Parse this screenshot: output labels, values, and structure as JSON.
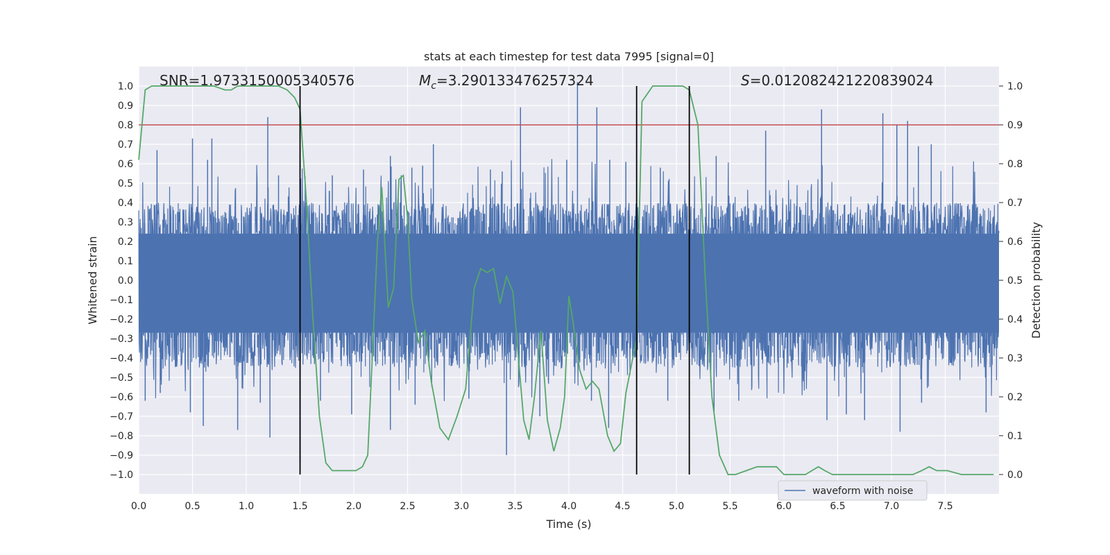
{
  "chart_data": {
    "type": "line",
    "title": "stats at each timestep for test data 7995 [signal=0]",
    "xlabel": "Time (s)",
    "ylabel": "Whitened strain",
    "ylabel_right": "Detection probability",
    "xlim": [
      0.0,
      8.0
    ],
    "ylim": [
      -1.1,
      1.1
    ],
    "ylim_right": [
      -0.05,
      1.05
    ],
    "x_ticks": [
      0.0,
      0.5,
      1.0,
      1.5,
      2.0,
      2.5,
      3.0,
      3.5,
      4.0,
      4.5,
      5.0,
      5.5,
      6.0,
      6.5,
      7.0,
      7.5
    ],
    "x_tick_labels": [
      "0.0",
      "0.5",
      "1.0",
      "1.5",
      "2.0",
      "2.5",
      "3.0",
      "3.5",
      "4.0",
      "4.5",
      "5.0",
      "5.5",
      "6.0",
      "6.5",
      "7.0",
      "7.5"
    ],
    "y_ticks": [
      1.0,
      0.9,
      0.8,
      0.7,
      0.6,
      0.5,
      0.4,
      0.3,
      0.2,
      0.1,
      0.0,
      -0.1,
      -0.2,
      -0.3,
      -0.4,
      -0.5,
      -0.6,
      -0.7,
      -0.8,
      -0.9,
      -1.0
    ],
    "y_tick_labels": [
      "1.0",
      "0.9",
      "0.8",
      "0.7",
      "0.6",
      "0.5",
      "0.4",
      "0.3",
      "0.2",
      "0.1",
      "0.0",
      "−0.1",
      "−0.2",
      "−0.3",
      "−0.4",
      "−0.5",
      "−0.6",
      "−0.7",
      "−0.8",
      "−0.9",
      "−1.0"
    ],
    "y_right_ticks": [
      1.0,
      0.9,
      0.8,
      0.7,
      0.6,
      0.5,
      0.4,
      0.3,
      0.2,
      0.1,
      0.0
    ],
    "y_right_tick_labels": [
      "1.0",
      "0.9",
      "0.8",
      "0.7",
      "0.6",
      "0.5",
      "0.4",
      "0.3",
      "0.2",
      "0.1",
      "0.0"
    ],
    "grid": true,
    "legend_position": "lower-right",
    "annotations": {
      "snr": "SNR=1.9733150005340576",
      "mc_symbol": "M",
      "mc_subscript": "c",
      "mc_value": "=3.290133476257324",
      "s_symbol": "S",
      "s_value": "=0.012082421220839024"
    },
    "threshold": {
      "y": 0.8,
      "color": "#c44e52"
    },
    "vertical_lines": [
      1.5,
      4.63,
      5.12
    ],
    "series": [
      {
        "name": "waveform with noise",
        "color": "#4c72b0",
        "axis": "left",
        "noise_band": [
          -0.45,
          0.4
        ],
        "peaks_positive": [
          [
            0.17,
            0.67
          ],
          [
            0.5,
            0.73
          ],
          [
            0.64,
            0.62
          ],
          [
            0.68,
            0.73
          ],
          [
            1.2,
            0.84
          ],
          [
            1.3,
            0.54
          ],
          [
            1.55,
            0.4
          ],
          [
            1.8,
            0.54
          ],
          [
            2.09,
            0.57
          ],
          [
            2.34,
            0.64
          ],
          [
            2.54,
            0.58
          ],
          [
            2.64,
            0.59
          ],
          [
            2.74,
            0.7
          ],
          [
            3.27,
            0.57
          ],
          [
            3.38,
            0.56
          ],
          [
            3.55,
            0.89
          ],
          [
            3.98,
            0.62
          ],
          [
            4.08,
            1.02
          ],
          [
            4.26,
            0.89
          ],
          [
            4.38,
            0.62
          ],
          [
            4.53,
            0.61
          ],
          [
            4.85,
            0.58
          ],
          [
            5.37,
            0.64
          ],
          [
            5.83,
            0.77
          ],
          [
            6.35,
            0.88
          ],
          [
            6.92,
            0.86
          ],
          [
            7.05,
            0.8
          ],
          [
            7.15,
            0.82
          ],
          [
            7.25,
            0.69
          ],
          [
            7.37,
            0.7
          ]
        ],
        "peaks_negative": [
          [
            0.06,
            -0.62
          ],
          [
            0.2,
            -0.58
          ],
          [
            0.48,
            -0.68
          ],
          [
            0.6,
            -0.75
          ],
          [
            0.92,
            -0.77
          ],
          [
            1.13,
            -0.63
          ],
          [
            1.22,
            -0.81
          ],
          [
            1.5,
            -0.94
          ],
          [
            1.69,
            -0.62
          ],
          [
            1.98,
            -0.69
          ],
          [
            2.34,
            -0.77
          ],
          [
            2.57,
            -0.64
          ],
          [
            3.07,
            -0.61
          ],
          [
            3.42,
            -0.9
          ],
          [
            3.73,
            -0.7
          ],
          [
            4.21,
            -0.62
          ],
          [
            4.37,
            -0.76
          ],
          [
            4.92,
            -0.62
          ],
          [
            5.35,
            -0.68
          ],
          [
            5.58,
            -0.62
          ],
          [
            6.4,
            -0.72
          ],
          [
            6.58,
            -0.69
          ],
          [
            6.75,
            -0.72
          ],
          [
            7.08,
            -0.78
          ],
          [
            7.28,
            -0.63
          ],
          [
            7.88,
            -0.68
          ]
        ]
      },
      {
        "name": "",
        "color": "#55a868",
        "axis": "right",
        "x": [
          0.0,
          0.06,
          0.12,
          0.2,
          0.3,
          0.4,
          0.5,
          0.6,
          0.7,
          0.8,
          0.86,
          0.92,
          1.0,
          1.1,
          1.2,
          1.3,
          1.38,
          1.45,
          1.5,
          1.56,
          1.62,
          1.68,
          1.74,
          1.8,
          1.87,
          1.95,
          2.02,
          2.08,
          2.13,
          2.18,
          2.22,
          2.26,
          2.32,
          2.37,
          2.42,
          2.46,
          2.5,
          2.54,
          2.6,
          2.66,
          2.72,
          2.8,
          2.88,
          2.96,
          3.04,
          3.12,
          3.18,
          3.24,
          3.3,
          3.36,
          3.42,
          3.48,
          3.54,
          3.58,
          3.63,
          3.68,
          3.74,
          3.8,
          3.86,
          3.92,
          3.96,
          4.0,
          4.04,
          4.1,
          4.16,
          4.22,
          4.28,
          4.36,
          4.42,
          4.48,
          4.53,
          4.58,
          4.63,
          4.68,
          4.78,
          4.9,
          5.0,
          5.06,
          5.12,
          5.2,
          5.27,
          5.33,
          5.4,
          5.48,
          5.55,
          5.65,
          5.75,
          5.82,
          5.88,
          5.93,
          6.0,
          6.1,
          6.2,
          6.26,
          6.32,
          6.38,
          6.45,
          6.6,
          6.8,
          7.0,
          7.2,
          7.28,
          7.35,
          7.42,
          7.52,
          7.65,
          7.8,
          7.95
        ],
        "y": [
          0.81,
          0.99,
          1.0,
          1.0,
          1.0,
          1.0,
          1.0,
          1.0,
          1.0,
          0.99,
          0.99,
          1.0,
          1.0,
          1.0,
          1.0,
          1.0,
          0.99,
          0.97,
          0.94,
          0.7,
          0.4,
          0.15,
          0.03,
          0.01,
          0.01,
          0.01,
          0.01,
          0.02,
          0.05,
          0.35,
          0.6,
          0.74,
          0.43,
          0.48,
          0.76,
          0.77,
          0.66,
          0.45,
          0.34,
          0.37,
          0.24,
          0.12,
          0.09,
          0.15,
          0.22,
          0.48,
          0.53,
          0.52,
          0.53,
          0.44,
          0.51,
          0.47,
          0.27,
          0.14,
          0.09,
          0.2,
          0.37,
          0.14,
          0.06,
          0.12,
          0.2,
          0.46,
          0.39,
          0.27,
          0.22,
          0.24,
          0.22,
          0.1,
          0.06,
          0.08,
          0.21,
          0.28,
          0.35,
          0.96,
          1.0,
          1.0,
          1.0,
          1.0,
          0.99,
          0.9,
          0.5,
          0.2,
          0.05,
          0.0,
          0.0,
          0.01,
          0.02,
          0.02,
          0.02,
          0.02,
          0.0,
          0.0,
          0.0,
          0.01,
          0.02,
          0.01,
          0.0,
          0.0,
          0.0,
          0.0,
          0.0,
          0.01,
          0.02,
          0.01,
          0.01,
          0.0,
          0.0,
          0.0
        ]
      }
    ]
  }
}
